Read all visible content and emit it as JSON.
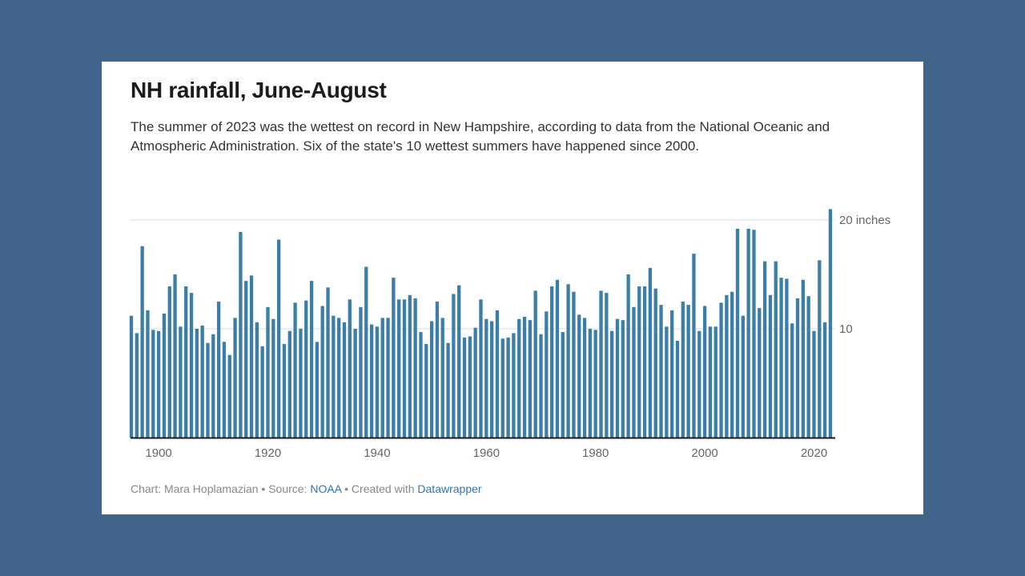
{
  "chart_data": {
    "type": "bar",
    "title": "NH rainfall, June-August",
    "subtitle": "The summer of 2023 was the wettest on record in New Hampshire, according to data from the National Oceanic and Atmospheric Administration. Six of the state's 10 wettest summers have happened since 2000.",
    "x_start": 1895,
    "x_end": 2023,
    "x_ticks": [
      "1900",
      "1920",
      "1940",
      "1960",
      "1980",
      "2000",
      "2020"
    ],
    "y_ticks": [
      {
        "value": 10,
        "label": "10"
      },
      {
        "value": 20,
        "label": "20 inches"
      }
    ],
    "ylim": [
      0,
      21
    ],
    "bar_color": "#3b7ea8",
    "values": [
      11.2,
      9.6,
      17.6,
      11.7,
      9.9,
      9.8,
      11.4,
      13.9,
      15.0,
      10.2,
      13.9,
      13.3,
      10.0,
      10.3,
      8.7,
      9.5,
      12.5,
      8.8,
      7.6,
      11.0,
      18.9,
      14.4,
      14.9,
      10.6,
      8.4,
      12.0,
      10.9,
      18.2,
      8.6,
      9.8,
      12.4,
      10.0,
      12.6,
      14.4,
      8.8,
      12.1,
      13.8,
      11.2,
      11.0,
      10.6,
      12.7,
      10.0,
      12.0,
      15.7,
      10.4,
      10.2,
      11.0,
      11.0,
      14.7,
      12.7,
      12.7,
      13.1,
      12.8,
      9.7,
      8.6,
      10.7,
      12.5,
      11.0,
      8.7,
      13.2,
      14.0,
      9.2,
      9.3,
      10.1,
      12.7,
      10.9,
      10.7,
      11.7,
      9.1,
      9.2,
      9.6,
      10.9,
      11.1,
      10.8,
      13.5,
      9.5,
      11.6,
      13.9,
      14.5,
      9.7,
      14.1,
      13.4,
      11.3,
      11.0,
      10.0,
      9.9,
      13.5,
      13.3,
      9.8,
      10.9,
      10.8,
      15.0,
      12.0,
      13.9,
      13.9,
      15.6,
      13.7,
      12.2,
      10.2,
      11.7,
      8.9,
      12.5,
      12.2,
      16.9,
      9.8,
      12.1,
      10.2,
      10.2,
      12.4,
      13.1,
      13.4,
      19.2,
      11.2,
      19.2,
      19.1,
      11.9,
      16.2,
      13.1,
      16.2,
      14.7,
      14.6,
      10.5,
      12.8,
      14.5,
      13.0,
      9.8,
      16.3,
      10.6,
      21.0
    ],
    "footer": {
      "prefix": "Chart: Mara Hoplamazian • Source: ",
      "source_link": "NOAA",
      "middle": " • Created with ",
      "tool_link": "Datawrapper"
    }
  }
}
